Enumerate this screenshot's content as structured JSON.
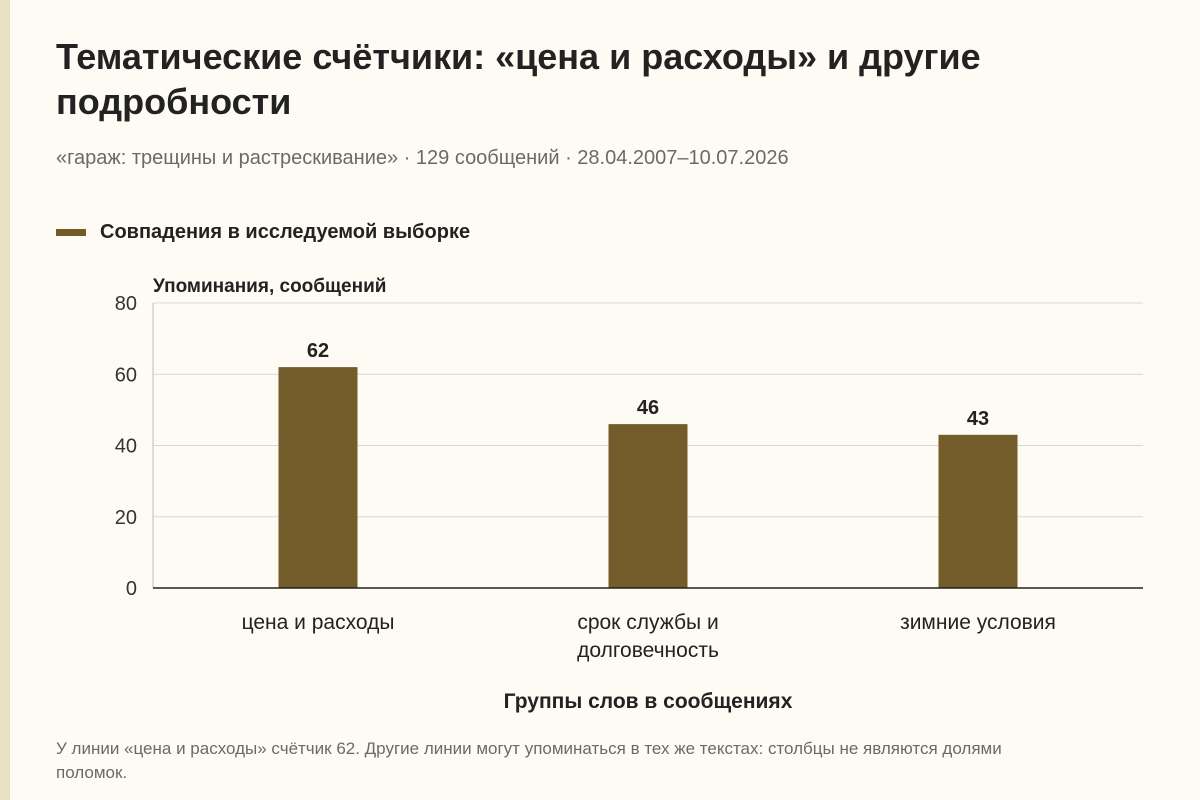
{
  "header": {
    "title": "Тематические счётчики: «цена и расходы» и другие подробности",
    "subtitle": "«гараж: трещины и растрескивание» · 129 сообщений · 28.04.2007–10.07.2026"
  },
  "legend": {
    "label": "Совпадения в исследуемой выборке"
  },
  "chart_data": {
    "type": "bar",
    "categories": [
      [
        "цена и расходы"
      ],
      [
        "срок службы и",
        "долговечность"
      ],
      [
        "зимние условия"
      ]
    ],
    "series": [
      {
        "name": "Совпадения в исследуемой выборке",
        "values": [
          62,
          46,
          43
        ]
      }
    ],
    "ylabel": "Упоминания, сообщений",
    "xlabel": "Группы слов в сообщениях",
    "ylim": [
      0,
      80
    ],
    "yticks": [
      0,
      20,
      40,
      60,
      80
    ],
    "grid": true,
    "legend_position": "top-left",
    "bar_color": "#735b2a"
  },
  "footnote": "У линии «цена и расходы» счётчик 62. Другие линии могут упоминаться в тех же текстах: столбцы не являются долями поломок."
}
